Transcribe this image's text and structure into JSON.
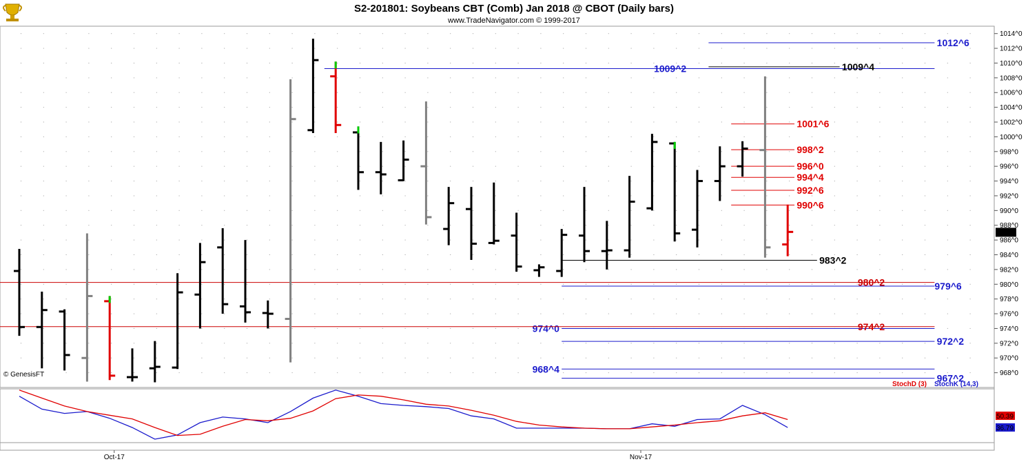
{
  "header": {
    "title": "S2-201801:  Soybeans CBT (Comb) Jan 2018 @ CBOT  (Daily bars)",
    "subtitle": "www.TradeNavigator.com © 1999-2017",
    "logo_icon": "trophy-icon"
  },
  "copyright_note": "© GenesisFT",
  "colors": {
    "up": "#000000",
    "down": "#000000",
    "gray": "#808080",
    "red": "#e00000",
    "green": "#00cc00",
    "blue": "#1a1acc",
    "darkred": "#cc0000"
  },
  "chart_data": [
    {
      "type": "ohlc",
      "ylim": [
        966,
        1015
      ],
      "y_ticks": [
        "1014^0",
        "1012^0",
        "1010^0",
        "1008^0",
        "1006^0",
        "1004^0",
        "1002^0",
        "1000^0",
        "998^0",
        "996^0",
        "994^0",
        "992^0",
        "990^0",
        "988^0",
        "986^0",
        "984^0",
        "982^0",
        "980^0",
        "978^0",
        "976^0",
        "974^0",
        "972^0",
        "970^0",
        "968^0"
      ],
      "last_price_label": "987^0",
      "x_labels": [
        {
          "label": "Oct-17",
          "bar": 4.2
        },
        {
          "label": "Nov-17",
          "bar": 27.5
        }
      ],
      "bars": [
        {
          "o": 981.8,
          "h": 984.8,
          "l": 973.0,
          "c": 974.2,
          "color": "black"
        },
        {
          "o": 974.2,
          "h": 979.0,
          "l": 968.6,
          "c": 976.5,
          "color": "black"
        },
        {
          "o": 976.3,
          "h": 976.6,
          "l": 968.3,
          "c": 970.4,
          "color": "black"
        },
        {
          "o": 970.0,
          "h": 986.9,
          "l": 966.8,
          "c": 978.4,
          "color": "gray"
        },
        {
          "o": 977.7,
          "h": 978.4,
          "l": 967.0,
          "c": 967.6,
          "color": "red",
          "hcolor": "green"
        },
        {
          "o": 967.4,
          "h": 971.3,
          "l": 966.8,
          "c": 967.4,
          "color": "black"
        },
        {
          "o": 968.6,
          "h": 972.3,
          "l": 966.7,
          "c": 968.8,
          "color": "black"
        },
        {
          "o": 968.7,
          "h": 981.5,
          "l": 968.5,
          "c": 978.9,
          "color": "black"
        },
        {
          "o": 978.6,
          "h": 985.6,
          "l": 974.0,
          "c": 983.0,
          "color": "black"
        },
        {
          "o": 985.0,
          "h": 987.6,
          "l": 976.0,
          "c": 977.3,
          "color": "black"
        },
        {
          "o": 977.0,
          "h": 986.0,
          "l": 974.8,
          "c": 976.2,
          "color": "black"
        },
        {
          "o": 976.1,
          "h": 977.8,
          "l": 974.0,
          "c": 976.0,
          "color": "black"
        },
        {
          "o": 975.3,
          "h": 1007.8,
          "l": 969.4,
          "c": 1002.4,
          "color": "gray"
        },
        {
          "o": 1000.9,
          "h": 1013.3,
          "l": 1000.5,
          "c": 1010.4,
          "color": "black"
        },
        {
          "o": 1008.2,
          "h": 1010.2,
          "l": 1000.5,
          "c": 1001.6,
          "color": "red",
          "hcolor": "green"
        },
        {
          "o": 1000.6,
          "h": 1001.4,
          "l": 992.8,
          "c": 995.2,
          "color": "black",
          "hcolor": "green"
        },
        {
          "o": 995.2,
          "h": 999.3,
          "l": 992.2,
          "c": 994.9,
          "color": "black"
        },
        {
          "o": 994.1,
          "h": 999.5,
          "l": 994.0,
          "c": 996.9,
          "color": "black"
        },
        {
          "o": 996.0,
          "h": 1004.8,
          "l": 988.1,
          "c": 989.1,
          "color": "gray"
        },
        {
          "o": 987.5,
          "h": 993.2,
          "l": 985.3,
          "c": 991.0,
          "color": "black"
        },
        {
          "o": 990.2,
          "h": 993.2,
          "l": 983.3,
          "c": 985.5,
          "color": "black"
        },
        {
          "o": 985.6,
          "h": 993.8,
          "l": 985.4,
          "c": 985.9,
          "color": "black"
        },
        {
          "o": 986.6,
          "h": 989.7,
          "l": 981.7,
          "c": 982.4,
          "color": "black"
        },
        {
          "o": 981.9,
          "h": 982.7,
          "l": 981.0,
          "c": 982.3,
          "color": "black"
        },
        {
          "o": 981.8,
          "h": 987.5,
          "l": 981.0,
          "c": 986.7,
          "color": "black"
        },
        {
          "o": 986.6,
          "h": 993.2,
          "l": 983.0,
          "c": 984.5,
          "color": "black"
        },
        {
          "o": 984.5,
          "h": 988.6,
          "l": 982.0,
          "c": 984.6,
          "color": "black"
        },
        {
          "o": 984.6,
          "h": 994.7,
          "l": 983.6,
          "c": 991.2,
          "color": "black"
        },
        {
          "o": 990.3,
          "h": 1000.4,
          "l": 990.0,
          "c": 999.3,
          "color": "black"
        },
        {
          "o": 999.1,
          "h": 999.3,
          "l": 985.8,
          "c": 986.9,
          "color": "black",
          "hcolor": "green"
        },
        {
          "o": 987.4,
          "h": 995.5,
          "l": 985.0,
          "c": 994.0,
          "color": "black"
        },
        {
          "o": 994.0,
          "h": 998.7,
          "l": 991.3,
          "c": 996.0,
          "color": "black"
        },
        {
          "o": 996.0,
          "h": 999.4,
          "l": 994.6,
          "c": 998.4,
          "color": "black"
        },
        {
          "o": 998.2,
          "h": 1008.2,
          "l": 983.6,
          "c": 985.0,
          "color": "gray"
        },
        {
          "o": 985.4,
          "h": 990.8,
          "l": 983.8,
          "c": 987.1,
          "color": "red"
        }
      ],
      "levels": [
        {
          "label": "1012^6",
          "value": 1012.75,
          "color": "blue",
          "x0": 30.5,
          "x1": 40.5,
          "lx": 40.6,
          "la": "start"
        },
        {
          "label": "1009^2",
          "value": 1009.25,
          "color": "blue",
          "x0": 13.5,
          "x1": 40.5,
          "lx": 28.8,
          "la": "middle"
        },
        {
          "label": "1009^4",
          "value": 1009.5,
          "color": "black",
          "x0": 30.5,
          "x1": 36.3,
          "lx": 36.4,
          "la": "start"
        },
        {
          "label": "1001^6",
          "value": 1001.75,
          "color": "red",
          "x0": 31.5,
          "x1": 34.3,
          "lx": 34.4,
          "la": "start"
        },
        {
          "label": "998^2",
          "value": 998.25,
          "color": "red",
          "x0": 31.5,
          "x1": 34.3,
          "lx": 34.4,
          "la": "start"
        },
        {
          "label": "996^0",
          "value": 996.0,
          "color": "red",
          "x0": 31.5,
          "x1": 34.3,
          "lx": 34.4,
          "la": "start"
        },
        {
          "label": "994^4",
          "value": 994.5,
          "color": "red",
          "x0": 31.5,
          "x1": 34.3,
          "lx": 34.4,
          "la": "start"
        },
        {
          "label": "992^6",
          "value": 992.75,
          "color": "red",
          "x0": 31.5,
          "x1": 34.3,
          "lx": 34.4,
          "la": "start"
        },
        {
          "label": "990^6",
          "value": 990.75,
          "color": "red",
          "x0": 31.5,
          "x1": 34.3,
          "lx": 34.4,
          "la": "start"
        },
        {
          "label": "983^2",
          "value": 983.25,
          "color": "black",
          "x0": 24.0,
          "x1": 35.3,
          "lx": 35.4,
          "la": "start"
        },
        {
          "label": "980^2",
          "value": 980.25,
          "color": "darkred",
          "x0": 0.0,
          "x1": 40.5,
          "lx": 37.7,
          "la": "middle"
        },
        {
          "label": "979^6",
          "value": 979.75,
          "color": "blue",
          "x0": 24.0,
          "x1": 40.5,
          "lx": 40.5,
          "la": "start"
        },
        {
          "label": "974^0",
          "value": 974.0,
          "color": "blue",
          "x0": 24.0,
          "x1": 40.5,
          "lx": 23.9,
          "la": "end"
        },
        {
          "label": "974^2",
          "value": 974.25,
          "color": "darkred",
          "x0": 0.0,
          "x1": 40.5,
          "lx": 37.7,
          "la": "middle"
        },
        {
          "label": "972^2",
          "value": 972.25,
          "color": "blue",
          "x0": 24.0,
          "x1": 40.5,
          "lx": 40.6,
          "la": "start"
        },
        {
          "label": "968^4",
          "value": 968.5,
          "color": "blue",
          "x0": 24.0,
          "x1": 40.5,
          "lx": 23.9,
          "la": "end"
        },
        {
          "label": "967^2",
          "value": 967.25,
          "color": "blue",
          "x0": 24.0,
          "x1": 40.5,
          "lx": 40.6,
          "la": "start"
        }
      ]
    },
    {
      "type": "line",
      "ylim": [
        0,
        100
      ],
      "legend": [
        "StochD (3)",
        "StochK (14,3)"
      ],
      "series": [
        {
          "name": "StochK (14,3)",
          "color": "blue",
          "last_label": "36.79",
          "values": [
            88,
            67,
            60,
            63,
            52,
            37,
            18,
            25,
            45,
            54,
            51,
            45,
            63,
            85,
            98,
            88,
            76,
            73,
            71,
            68,
            56,
            51,
            36,
            36,
            36,
            36,
            35,
            35,
            43,
            39,
            50,
            51,
            73,
            58,
            37
          ]
        },
        {
          "name": "StochD (3)",
          "color": "red",
          "last_label": "50.39",
          "values": [
            98,
            85,
            72,
            63,
            57,
            51,
            37,
            24,
            26,
            39,
            50,
            48,
            52,
            64,
            84,
            90,
            88,
            82,
            75,
            72,
            65,
            57,
            47,
            41,
            38,
            36,
            35,
            35,
            38,
            41,
            45,
            48,
            56,
            61,
            50
          ]
        }
      ]
    }
  ]
}
